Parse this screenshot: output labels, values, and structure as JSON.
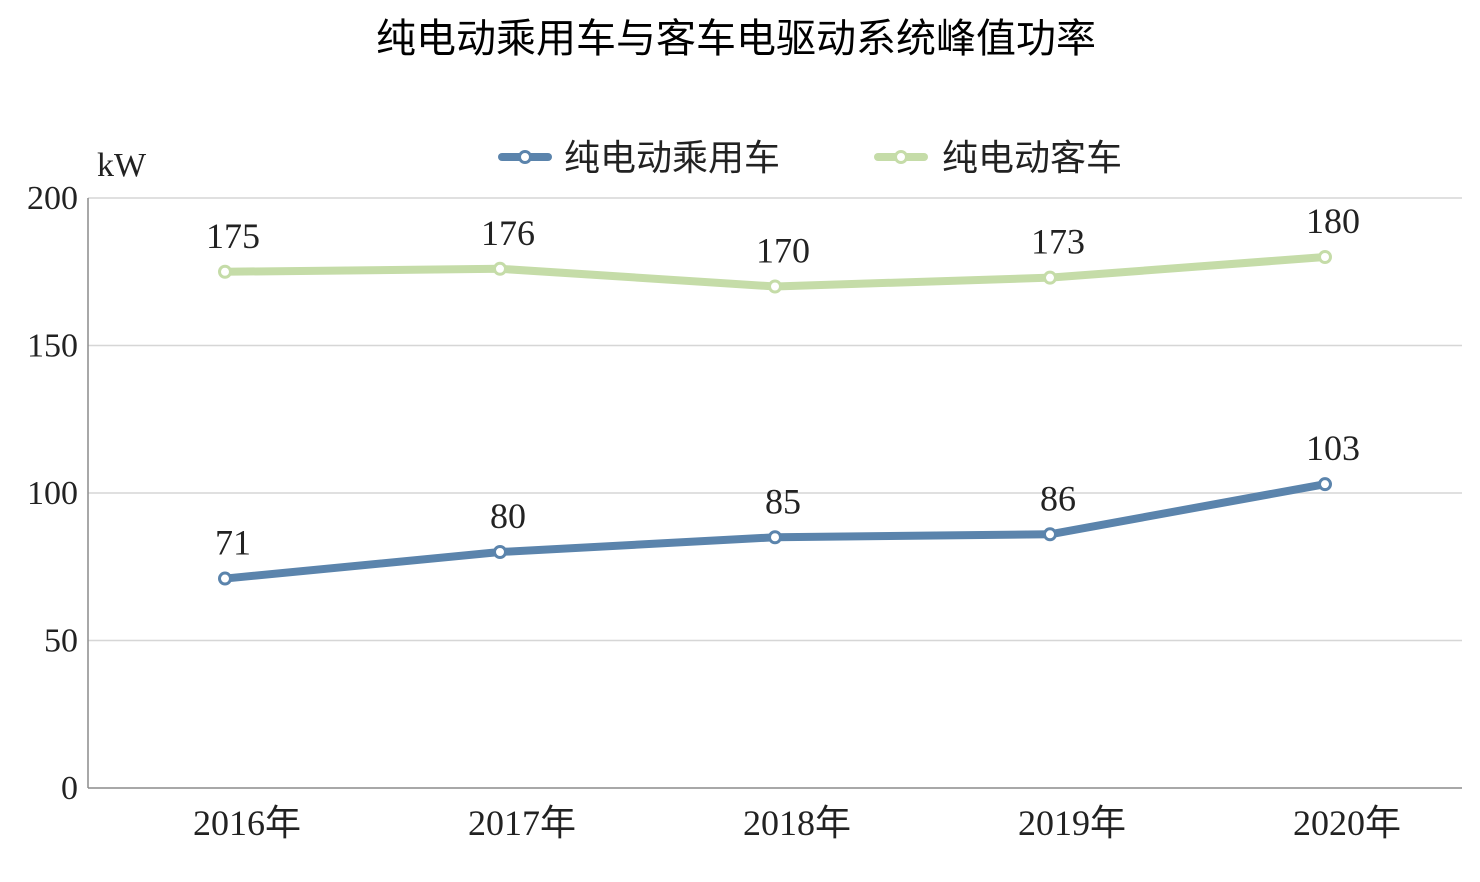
{
  "chart_data": {
    "type": "line",
    "title": "纯电动乘用车与客车电驱动系统峰值功率",
    "ylabel": "kW",
    "categories": [
      "2016年",
      "2017年",
      "2018年",
      "2019年",
      "2020年"
    ],
    "ylim": [
      0,
      200
    ],
    "yticks": [
      0,
      50,
      100,
      150,
      200
    ],
    "grid": true,
    "legend_position": "top-center",
    "series": [
      {
        "name": "纯电动乘用车",
        "values": [
          71,
          80,
          85,
          86,
          103
        ],
        "color": "#5b84ac"
      },
      {
        "name": "纯电动客车",
        "values": [
          175,
          176,
          170,
          173,
          180
        ],
        "color": "#c5dca8"
      }
    ]
  }
}
